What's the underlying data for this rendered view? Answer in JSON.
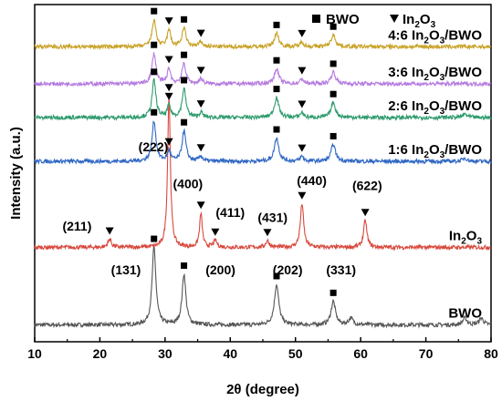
{
  "chart_data": {
    "type": "line",
    "xlabel": "2θ (degree)",
    "ylabel": "Intensity (a.u.)",
    "xlim": [
      10,
      80
    ],
    "xticks": [
      10,
      20,
      30,
      40,
      50,
      60,
      70,
      80
    ],
    "x_tick_labels": [
      "10",
      "20",
      "30",
      "40",
      "50",
      "60",
      "70",
      "80"
    ],
    "legend": {
      "position": "top-right",
      "items": [
        {
          "marker": "square",
          "label": "BWO"
        },
        {
          "marker": "triangle-down",
          "label_main": "In",
          "label_sub": "2",
          "label_tail": "O",
          "label_sub2": "3"
        }
      ]
    },
    "series": [
      {
        "name": "BWO",
        "label_main": "BWO",
        "color": "#555555",
        "baseline": 0.05,
        "peaks": [
          [
            28.3,
            0.23,
            0.35
          ],
          [
            32.9,
            0.15,
            0.35
          ],
          [
            47.1,
            0.12,
            0.4
          ],
          [
            55.8,
            0.07,
            0.4
          ],
          [
            58.5,
            0.02,
            0.4
          ],
          [
            76.0,
            0.02,
            0.4
          ],
          [
            78.5,
            0.02,
            0.4
          ]
        ],
        "markers": [
          {
            "x": 28.3,
            "type": "square"
          },
          {
            "x": 32.9,
            "type": "square"
          },
          {
            "x": 47.1,
            "type": "square"
          },
          {
            "x": 55.8,
            "type": "square"
          }
        ]
      },
      {
        "name": "In2O3",
        "label_main": "In",
        "label_sub": "2",
        "label_tail": "O",
        "label_sub2": "3",
        "color": "#d84a3e",
        "baseline": 0.28,
        "peaks": [
          [
            21.5,
            0.025,
            0.3
          ],
          [
            30.6,
            0.45,
            0.25
          ],
          [
            35.5,
            0.1,
            0.25
          ],
          [
            37.7,
            0.02,
            0.3
          ],
          [
            45.7,
            0.02,
            0.3
          ],
          [
            51.0,
            0.13,
            0.3
          ],
          [
            60.7,
            0.08,
            0.3
          ]
        ],
        "markers": [
          {
            "x": 21.5,
            "type": "triangle"
          },
          {
            "x": 30.6,
            "type": "triangle"
          },
          {
            "x": 35.5,
            "type": "triangle"
          },
          {
            "x": 37.7,
            "type": "triangle"
          },
          {
            "x": 45.7,
            "type": "triangle"
          },
          {
            "x": 51.0,
            "type": "triangle"
          },
          {
            "x": 60.7,
            "type": "triangle"
          }
        ]
      },
      {
        "name": "1:6 In2O3/BWO",
        "label_main": "1:6 In",
        "label_sub": "2",
        "label_tail": "O",
        "label_sub2": "3",
        "label_end": "/BWO",
        "color": "#2f67c4",
        "baseline": 0.535,
        "peaks": [
          [
            28.3,
            0.12,
            0.35
          ],
          [
            30.6,
            0.03,
            0.3
          ],
          [
            32.9,
            0.09,
            0.35
          ],
          [
            35.5,
            0.015,
            0.3
          ],
          [
            47.1,
            0.07,
            0.4
          ],
          [
            51.0,
            0.015,
            0.3
          ],
          [
            55.8,
            0.05,
            0.4
          ],
          [
            76.0,
            0.01,
            0.4
          ]
        ],
        "markers": [
          {
            "x": 28.3,
            "type": "square"
          },
          {
            "x": 30.6,
            "type": "triangle"
          },
          {
            "x": 32.9,
            "type": "square"
          },
          {
            "x": 35.5,
            "type": "triangle"
          },
          {
            "x": 47.1,
            "type": "square"
          },
          {
            "x": 51.0,
            "type": "triangle"
          },
          {
            "x": 55.8,
            "type": "square"
          }
        ]
      },
      {
        "name": "2:6 In2O3/BWO",
        "label_main": "2:6 In",
        "label_sub": "2",
        "label_tail": "O",
        "label_sub2": "3",
        "label_end": "/BWO",
        "color": "#2e9b6e",
        "baseline": 0.665,
        "peaks": [
          [
            28.3,
            0.11,
            0.35
          ],
          [
            30.6,
            0.035,
            0.3
          ],
          [
            32.9,
            0.085,
            0.35
          ],
          [
            35.5,
            0.015,
            0.3
          ],
          [
            47.1,
            0.06,
            0.4
          ],
          [
            51.0,
            0.015,
            0.3
          ],
          [
            55.8,
            0.045,
            0.4
          ],
          [
            76.0,
            0.01,
            0.4
          ]
        ],
        "markers": [
          {
            "x": 28.3,
            "type": "square"
          },
          {
            "x": 30.6,
            "type": "triangle"
          },
          {
            "x": 32.9,
            "type": "square"
          },
          {
            "x": 35.5,
            "type": "triangle"
          },
          {
            "x": 47.1,
            "type": "square"
          },
          {
            "x": 51.0,
            "type": "triangle"
          },
          {
            "x": 55.8,
            "type": "square"
          }
        ]
      },
      {
        "name": "3:6 In2O3/BWO",
        "label_main": "3:6 In",
        "label_sub": "2",
        "label_tail": "O",
        "label_sub2": "3",
        "label_end": "/BWO",
        "color": "#b57be0",
        "baseline": 0.765,
        "peaks": [
          [
            28.3,
            0.09,
            0.35
          ],
          [
            30.6,
            0.045,
            0.3
          ],
          [
            32.9,
            0.06,
            0.35
          ],
          [
            35.5,
            0.015,
            0.3
          ],
          [
            47.1,
            0.045,
            0.4
          ],
          [
            51.0,
            0.015,
            0.3
          ],
          [
            55.8,
            0.035,
            0.4
          ]
        ],
        "markers": [
          {
            "x": 28.3,
            "type": "square"
          },
          {
            "x": 30.6,
            "type": "triangle"
          },
          {
            "x": 32.9,
            "type": "square"
          },
          {
            "x": 35.5,
            "type": "triangle"
          },
          {
            "x": 47.1,
            "type": "square"
          },
          {
            "x": 51.0,
            "type": "triangle"
          },
          {
            "x": 55.8,
            "type": "square"
          }
        ]
      },
      {
        "name": "4:6 In2O3/BWO",
        "label_main": "4:6 In",
        "label_sub": "2",
        "label_tail": "O",
        "label_sub2": "3",
        "label_end": "/BWO",
        "color": "#c9a227",
        "baseline": 0.875,
        "peaks": [
          [
            28.3,
            0.08,
            0.35
          ],
          [
            30.6,
            0.05,
            0.3
          ],
          [
            32.9,
            0.055,
            0.35
          ],
          [
            35.5,
            0.015,
            0.3
          ],
          [
            47.1,
            0.04,
            0.4
          ],
          [
            51.0,
            0.015,
            0.3
          ],
          [
            55.8,
            0.035,
            0.4
          ]
        ],
        "markers": [
          {
            "x": 28.3,
            "type": "square"
          },
          {
            "x": 30.6,
            "type": "triangle"
          },
          {
            "x": 32.9,
            "type": "square"
          },
          {
            "x": 35.5,
            "type": "triangle"
          },
          {
            "x": 47.1,
            "type": "square"
          },
          {
            "x": 51.0,
            "type": "triangle"
          },
          {
            "x": 55.8,
            "type": "square"
          }
        ]
      }
    ],
    "annotations": [
      {
        "text": "(211)",
        "x": 16.5,
        "y": 0.33
      },
      {
        "text": "(222)",
        "x": 28.2,
        "y": 0.565
      },
      {
        "text": "(400)",
        "x": 33.5,
        "y": 0.455
      },
      {
        "text": "(411)",
        "x": 40.0,
        "y": 0.37
      },
      {
        "text": "(431)",
        "x": 46.5,
        "y": 0.355
      },
      {
        "text": "(440)",
        "x": 52.5,
        "y": 0.465
      },
      {
        "text": "(622)",
        "x": 61.0,
        "y": 0.45
      },
      {
        "text": "(131)",
        "x": 24.0,
        "y": 0.2
      },
      {
        "text": "(200)",
        "x": 38.5,
        "y": 0.2
      },
      {
        "text": "(202)",
        "x": 48.8,
        "y": 0.2
      },
      {
        "text": "(331)",
        "x": 57.0,
        "y": 0.2
      }
    ]
  }
}
